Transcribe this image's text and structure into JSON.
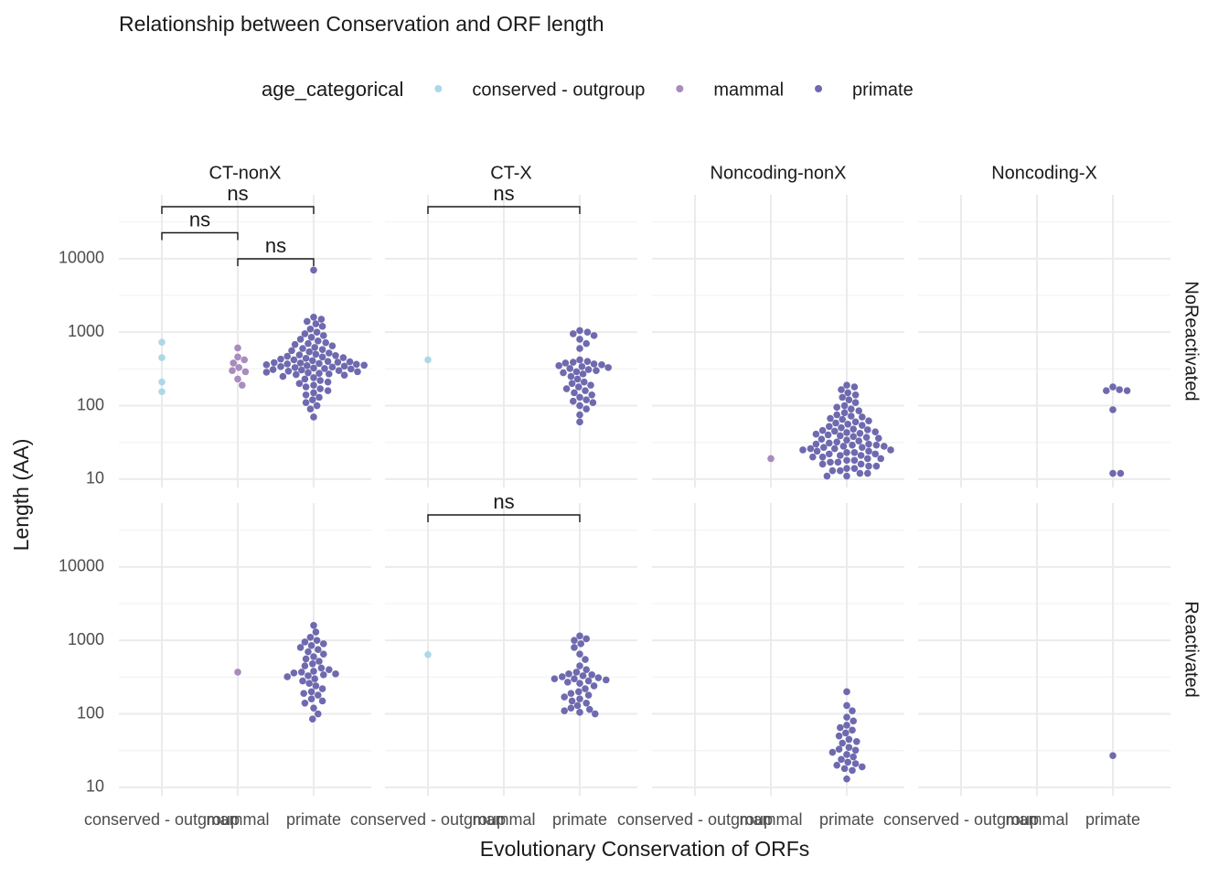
{
  "chart_data": {
    "type": "scatter",
    "title": "Relationship between Conservation and ORF length",
    "x_label": "Evolutionary Conservation of ORFs",
    "y_label": "Length (AA)",
    "legend_title": "age_categorical",
    "categories": [
      "conserved - outgroup",
      "mammal",
      "primate"
    ],
    "series": [
      {
        "name": "conserved - outgroup",
        "color": "#add8e6"
      },
      {
        "name": "mammal",
        "color": "#a98bbd"
      },
      {
        "name": "primate",
        "color": "#6f6aaf"
      }
    ],
    "columns": [
      "CT-nonX",
      "CT-X",
      "Noncoding-nonX",
      "Noncoding-X"
    ],
    "rows": [
      "NoReactivated",
      "Reactivated"
    ],
    "log_y": true,
    "grid": true,
    "ylim": [
      7.7,
      74000
    ],
    "yticks": [
      10,
      100,
      1000,
      10000
    ],
    "y_minor_ticks": [
      31.6,
      316.2,
      3162.3,
      31622.8
    ],
    "panels": [
      {
        "values": [
          [
            730,
            210,
            155,
            450
          ],
          [
            290,
            460,
            380,
            230,
            610,
            190,
            300,
            420,
            330
          ],
          [
            7000,
            1600,
            1500,
            1400,
            1300,
            1200,
            1100,
            1000,
            950,
            900,
            850,
            800,
            760,
            720,
            700,
            680,
            650,
            620,
            600,
            580,
            560,
            540,
            520,
            500,
            490,
            480,
            470,
            460,
            450,
            440,
            430,
            420,
            410,
            400,
            395,
            390,
            385,
            380,
            375,
            370,
            365,
            360,
            355,
            350,
            345,
            340,
            335,
            330,
            325,
            320,
            315,
            310,
            305,
            300,
            295,
            290,
            285,
            280,
            275,
            270,
            265,
            260,
            250,
            240,
            230,
            220,
            210,
            200,
            190,
            180,
            170,
            160,
            150,
            140,
            130,
            120,
            110,
            100,
            90,
            70
          ]
        ],
        "comparisons": [
          {
            "from": "mammal",
            "to": "primate",
            "label": "ns"
          },
          {
            "from": "conserved - outgroup",
            "to": "mammal",
            "label": "ns"
          },
          {
            "from": "conserved - outgroup",
            "to": "primate",
            "label": "ns"
          }
        ]
      },
      {
        "values": [
          [
            420
          ],
          [],
          [
            1050,
            1000,
            950,
            900,
            800,
            700,
            600,
            420,
            400,
            390,
            380,
            370,
            360,
            350,
            340,
            330,
            320,
            310,
            300,
            290,
            280,
            270,
            250,
            230,
            210,
            200,
            190,
            180,
            170,
            160,
            150,
            140,
            130,
            120,
            115,
            110,
            100,
            90,
            75,
            60
          ]
        ],
        "comparisons": [
          {
            "from": "conserved - outgroup",
            "to": "primate",
            "label": "ns"
          }
        ]
      },
      {
        "values": [
          [],
          [
            19
          ],
          [
            190,
            180,
            165,
            150,
            140,
            130,
            120,
            110,
            100,
            95,
            90,
            85,
            80,
            75,
            72,
            70,
            67,
            65,
            62,
            60,
            58,
            56,
            54,
            52,
            50,
            48,
            47,
            46,
            45,
            44,
            43,
            42,
            41,
            40,
            39,
            38,
            37,
            36,
            35,
            34,
            33,
            32,
            31,
            30,
            30,
            29,
            29,
            28,
            28,
            27,
            27,
            26,
            26,
            25,
            25,
            24,
            24,
            23,
            23,
            22,
            22,
            21,
            21,
            20,
            20,
            19,
            19,
            18,
            18,
            17,
            17,
            16,
            16,
            15,
            15,
            14,
            14,
            13,
            13,
            12,
            12,
            11,
            11
          ]
        ],
        "comparisons": []
      },
      {
        "values": [
          [],
          [],
          [
            180,
            165,
            160,
            160,
            88,
            12,
            12
          ]
        ],
        "comparisons": []
      },
      {
        "values": [
          [],
          [
            370
          ],
          [
            1600,
            1300,
            1100,
            1000,
            950,
            900,
            850,
            800,
            750,
            700,
            650,
            600,
            560,
            520,
            480,
            450,
            420,
            400,
            380,
            370,
            360,
            350,
            340,
            330,
            320,
            300,
            280,
            260,
            240,
            220,
            200,
            190,
            180,
            160,
            150,
            140,
            120,
            100,
            85
          ]
        ],
        "comparisons": []
      },
      {
        "values": [
          [
            640
          ],
          [],
          [
            1150,
            1050,
            1000,
            900,
            800,
            650,
            550,
            450,
            400,
            370,
            350,
            340,
            330,
            320,
            310,
            300,
            300,
            290,
            280,
            270,
            260,
            240,
            220,
            200,
            190,
            180,
            170,
            160,
            150,
            140,
            130,
            120,
            115,
            110,
            105,
            100
          ]
        ],
        "comparisons": [
          {
            "from": "conserved - outgroup",
            "to": "primate",
            "label": "ns"
          }
        ]
      },
      {
        "values": [
          [],
          [],
          [
            200,
            130,
            110,
            90,
            80,
            70,
            65,
            60,
            55,
            50,
            45,
            42,
            40,
            35,
            33,
            32,
            30,
            28,
            26,
            24,
            22,
            21,
            20,
            19,
            18,
            17,
            13
          ]
        ],
        "comparisons": []
      },
      {
        "values": [
          [],
          [],
          [
            27
          ]
        ],
        "comparisons": []
      }
    ]
  }
}
